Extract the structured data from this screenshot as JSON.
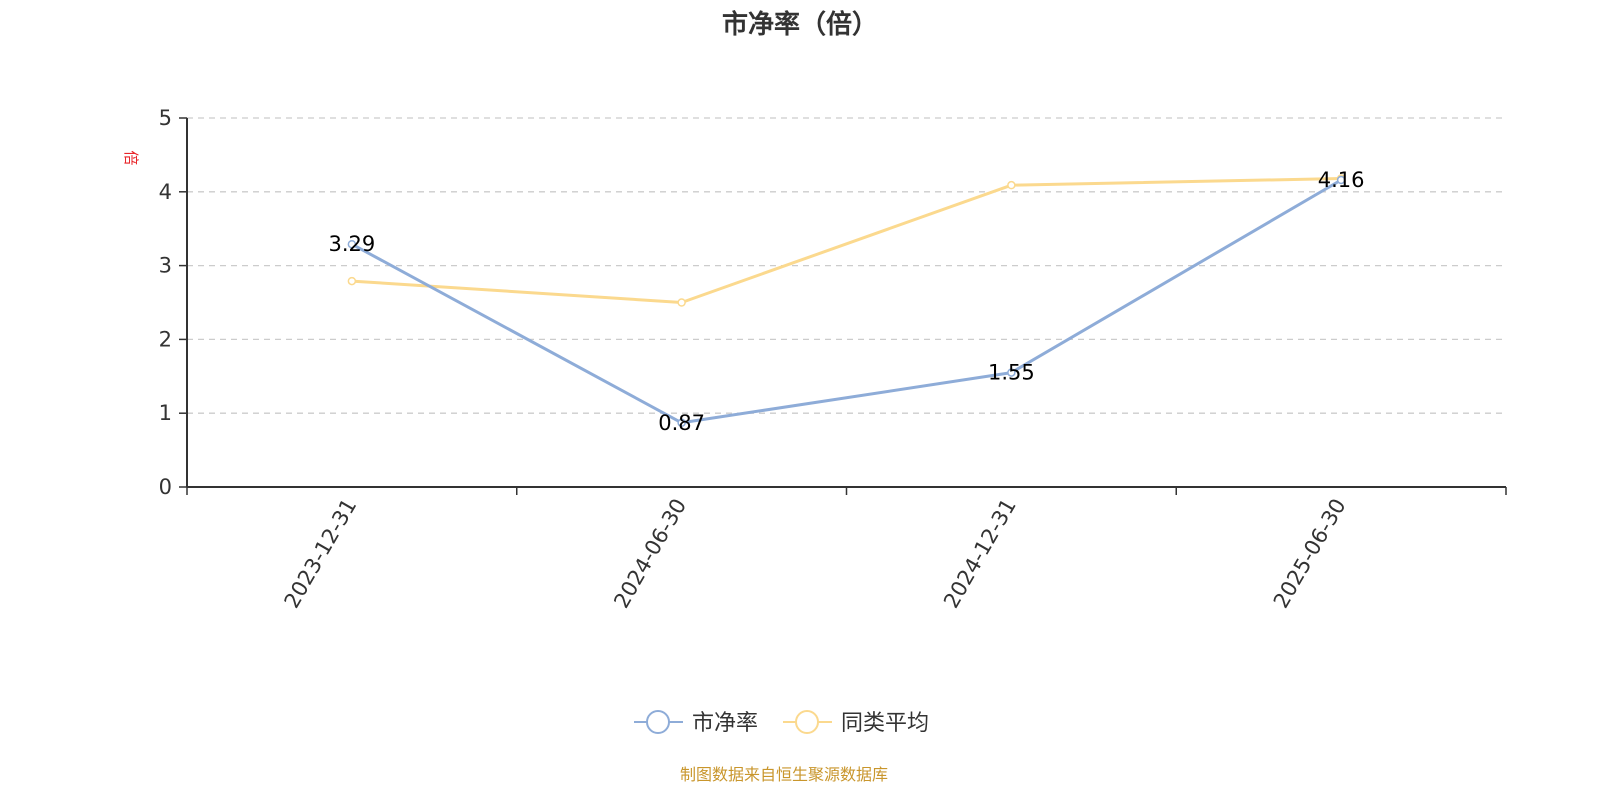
{
  "chart_data": {
    "type": "line",
    "title": "市净率（倍）",
    "ylabel": "倍",
    "categories": [
      "2023-12-31",
      "2024-06-30",
      "2024-12-31",
      "2025-06-30"
    ],
    "ylim": [
      0,
      5
    ],
    "yticks": [
      "0",
      "1",
      "2",
      "3",
      "4",
      "5"
    ],
    "grid": true,
    "legend_position": "bottom",
    "series": [
      {
        "name": "市净率",
        "values": [
          3.29,
          0.87,
          1.55,
          4.16
        ],
        "labels": [
          "3.29",
          "0.87",
          "1.55",
          "4.16"
        ],
        "color": "#8eacd8"
      },
      {
        "name": "同类平均",
        "values": [
          2.79,
          2.5,
          4.09,
          4.18
        ],
        "color": "#fbd98e"
      }
    ]
  },
  "footer": "制图数据来自恒生聚源数据库",
  "colors": {
    "unit": "#e8262a",
    "footer": "#c9962c",
    "grid": "#cccccc",
    "axis": "#333333"
  }
}
